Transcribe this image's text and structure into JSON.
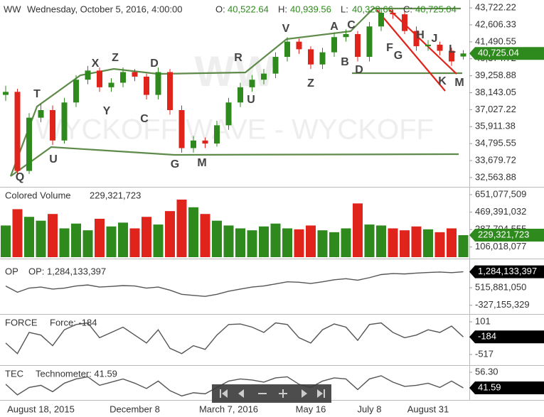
{
  "chart_data": [
    {
      "type": "candlestick",
      "title": "WW",
      "subtitle": "Wednesday, October 5, 2016, 4:00:00",
      "quote": [
        {
          "label": "O:",
          "value": "40,522.64"
        },
        {
          "label": "H:",
          "value": "40,939.56"
        },
        {
          "label": "L:",
          "value": "40,328.66"
        },
        {
          "label": "C:",
          "value": "40,725.04"
        }
      ],
      "watermark": [
        "WW",
        "WYCKOFF WAVE - WYCKOFF"
      ],
      "annotations": [
        "Q",
        "T",
        "U",
        "X",
        "Y",
        "Z",
        "C",
        "D",
        "G",
        "M",
        "R",
        "U",
        "V",
        "Z",
        "A",
        "C",
        "B",
        "D",
        "F",
        "G",
        "H",
        "J",
        "L",
        "K",
        "M"
      ],
      "categories": [
        null,
        null,
        null,
        "August 18, 2015",
        null,
        null,
        null,
        null,
        null,
        null,
        null,
        "December 8",
        null,
        null,
        null,
        null,
        null,
        null,
        null,
        "March 7, 2016",
        null,
        null,
        null,
        null,
        null,
        null,
        "May 16",
        null,
        null,
        null,
        null,
        "July 8",
        null,
        null,
        null,
        null,
        "August 31",
        null,
        null,
        null
      ],
      "open": [
        38000,
        38200,
        33000,
        36500,
        37000,
        35000,
        37500,
        39000,
        39600,
        38500,
        38800,
        39500,
        39200,
        38000,
        39500,
        37000,
        34500,
        35000,
        34800,
        36000,
        37500,
        38500,
        39000,
        39400,
        40500,
        41500,
        41000,
        40000,
        40800,
        41800,
        42000,
        40500,
        42500,
        43400,
        43300,
        42200,
        41200,
        41300,
        40900,
        40522.64
      ],
      "high": [
        38600,
        38400,
        36800,
        37400,
        37300,
        37800,
        39300,
        39900,
        39800,
        39100,
        39800,
        39700,
        39400,
        39800,
        39700,
        37300,
        35300,
        35200,
        36300,
        37800,
        38800,
        39300,
        39700,
        40800,
        41800,
        41700,
        41200,
        41100,
        42100,
        42300,
        42200,
        42800,
        43700,
        43600,
        43500,
        42500,
        41600,
        41500,
        41100,
        40939.56
      ],
      "low": [
        37600,
        32700,
        32800,
        36200,
        34700,
        34800,
        37200,
        38700,
        38200,
        38200,
        38500,
        38900,
        37700,
        37700,
        36700,
        34200,
        34200,
        34500,
        34600,
        35700,
        37200,
        38200,
        38700,
        39100,
        40200,
        40700,
        39700,
        39700,
        40500,
        41500,
        40200,
        40200,
        42200,
        43000,
        42000,
        40900,
        40900,
        40600,
        39900,
        40328.66
      ],
      "close": [
        38200,
        33000,
        36500,
        37000,
        35000,
        37500,
        39000,
        39600,
        38500,
        38800,
        39500,
        39200,
        38000,
        39500,
        37000,
        34500,
        35000,
        34800,
        36000,
        37500,
        38500,
        39000,
        39400,
        40500,
        41500,
        41000,
        40000,
        40800,
        41800,
        42000,
        40500,
        42500,
        43400,
        43300,
        42200,
        41200,
        41300,
        40900,
        40200,
        40725.04
      ],
      "up_color": "#2f8a1e",
      "down_color": "#e0231b",
      "last_label": "40,725.04",
      "ylim": [
        32000,
        44240
      ],
      "yticks": [
        {
          "value": 43722.22,
          "label": "43,722.22"
        },
        {
          "value": 42606.33,
          "label": "42,606.33"
        },
        {
          "value": 41490.55,
          "label": "41,490.55"
        },
        {
          "value": 40374.72,
          "label": "40,374.72"
        },
        {
          "value": 39258.88,
          "label": "39,258.88"
        },
        {
          "value": 38143.05,
          "label": "38,143.05"
        },
        {
          "value": 37027.22,
          "label": "37,027.22"
        },
        {
          "value": 35911.38,
          "label": "35,911.38"
        },
        {
          "value": 34795.55,
          "label": "34,795.55"
        },
        {
          "value": 33679.72,
          "label": "33,679.72"
        },
        {
          "value": 32563.88,
          "label": "32,563.88"
        }
      ]
    },
    {
      "type": "bar",
      "title": "Colored Volume",
      "legend_value": "229,321,723",
      "values": [
        330000000,
        500000000,
        420000000,
        380000000,
        450000000,
        300000000,
        350000000,
        280000000,
        400000000,
        320000000,
        360000000,
        300000000,
        420000000,
        340000000,
        480000000,
        600000000,
        520000000,
        450000000,
        380000000,
        330000000,
        300000000,
        280000000,
        320000000,
        350000000,
        300000000,
        290000000,
        330000000,
        280000000,
        260000000,
        300000000,
        560000000,
        340000000,
        330000000,
        300000000,
        280000000,
        320000000,
        290000000,
        260000000,
        300000000,
        229321723
      ],
      "last_label": "229,321,723",
      "ylim": [
        0,
        718000000
      ],
      "yticks": [
        {
          "value": 651077509,
          "label": "651,077,509"
        },
        {
          "value": 469391032,
          "label": "469,391,032"
        },
        {
          "value": 287704555,
          "label": "287,704,555"
        },
        {
          "value": 106018077,
          "label": "106,018,077"
        }
      ]
    },
    {
      "type": "line",
      "title": "OP",
      "legend": "OP: 1,284,133,397",
      "color": "#555555",
      "values": [
        600000000,
        300000000,
        500000000,
        550000000,
        450000000,
        500000000,
        600000000,
        650000000,
        550000000,
        580000000,
        620000000,
        600000000,
        500000000,
        550000000,
        400000000,
        200000000,
        150000000,
        100000000,
        200000000,
        350000000,
        450000000,
        550000000,
        600000000,
        700000000,
        800000000,
        780000000,
        720000000,
        800000000,
        900000000,
        950000000,
        880000000,
        1000000000,
        1150000000,
        1200000000,
        1180000000,
        1220000000,
        1250000000,
        1270000000,
        1240000000,
        1284133397
      ],
      "last_label": "1,284,133,397",
      "ylim": [
        -678000000,
        1850000000
      ],
      "yticks": [
        {
          "value": 515881050,
          "label": "515,881,050"
        },
        {
          "value": -327155329,
          "label": "-327,155,329"
        }
      ]
    },
    {
      "type": "line",
      "title": "FORCE",
      "legend": "Force: -184",
      "color": "#555555",
      "values": [
        -300,
        -500,
        -100,
        -150,
        -350,
        -50,
        50,
        80,
        -200,
        -100,
        0,
        -150,
        -300,
        -50,
        -400,
        -500,
        -350,
        -420,
        -150,
        50,
        60,
        0,
        -100,
        80,
        50,
        -200,
        -300,
        -50,
        60,
        0,
        -250,
        50,
        80,
        -100,
        -200,
        -150,
        -50,
        -100,
        20,
        -184
      ],
      "last_label": "-184",
      "ylim": [
        -691,
        208
      ],
      "yticks": [
        101,
        -517
      ]
    },
    {
      "type": "line",
      "title": "TEC",
      "legend": "Technometer: 41.59",
      "color": "#555555",
      "values": [
        45,
        35,
        42,
        44,
        38,
        46,
        50,
        52,
        44,
        47,
        50,
        46,
        41,
        48,
        39,
        34,
        37,
        36,
        42,
        48,
        50,
        49,
        47,
        51,
        52,
        45,
        42,
        48,
        51,
        50,
        40,
        50,
        53,
        47,
        43,
        44,
        46,
        42,
        48,
        41.59
      ],
      "last_label": "41.59",
      "ylim": [
        30.9,
        61.65
      ],
      "yticks": [
        {
          "value": 56.3,
          "label": "56.30"
        }
      ]
    }
  ]
}
